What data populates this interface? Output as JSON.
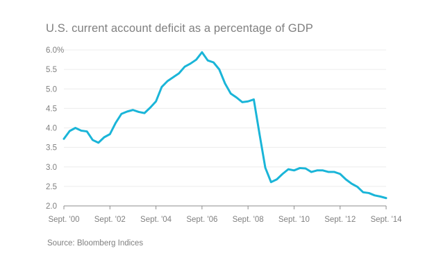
{
  "chart_data": {
    "type": "line",
    "title": "U.S. current account deficit as a percentage of GDP",
    "source": "Source: Bloomberg Indices",
    "xlabel": "",
    "ylabel": "",
    "x_tick_labels": [
      "Sept. '00",
      "Sept. '02",
      "Sept. '04",
      "Sept. '06",
      "Sept. '08",
      "Sept. '10",
      "Sept. '12",
      "Sept. '14"
    ],
    "y_tick_labels": [
      "2.0",
      "2.5",
      "3.0",
      "3.5",
      "4.0",
      "4.5",
      "5.0",
      "5.5",
      "6.0%"
    ],
    "ylim": [
      2.0,
      6.0
    ],
    "grid": "horizontal",
    "legend": "none",
    "line_color": "#1ab5d8",
    "series": [
      {
        "x": [
          "2000-09",
          "2000-12",
          "2001-03",
          "2001-06",
          "2001-09",
          "2001-12",
          "2002-03",
          "2002-06",
          "2002-09",
          "2002-12",
          "2003-03",
          "2003-06",
          "2003-09",
          "2003-12",
          "2004-03",
          "2004-06",
          "2004-09",
          "2004-12",
          "2005-03",
          "2005-06",
          "2005-09",
          "2005-12",
          "2006-03",
          "2006-06",
          "2006-09",
          "2006-12",
          "2007-03",
          "2007-06",
          "2007-09",
          "2007-12",
          "2008-03",
          "2008-06",
          "2008-09",
          "2008-12",
          "2009-03",
          "2009-06",
          "2009-09",
          "2009-12",
          "2010-03",
          "2010-06",
          "2010-09",
          "2010-12",
          "2011-03",
          "2011-06",
          "2011-09",
          "2011-12",
          "2012-03",
          "2012-06",
          "2012-09",
          "2012-12",
          "2013-03",
          "2013-06",
          "2013-09",
          "2013-12",
          "2014-03",
          "2014-06",
          "2014-09"
        ],
        "values": [
          3.72,
          3.92,
          4.0,
          3.93,
          3.91,
          3.69,
          3.62,
          3.76,
          3.84,
          4.13,
          4.36,
          4.42,
          4.46,
          4.41,
          4.38,
          4.52,
          4.68,
          5.05,
          5.2,
          5.3,
          5.4,
          5.57,
          5.65,
          5.75,
          5.94,
          5.73,
          5.68,
          5.5,
          5.14,
          4.88,
          4.78,
          4.66,
          4.68,
          4.73,
          3.84,
          2.98,
          2.61,
          2.68,
          2.82,
          2.94,
          2.91,
          2.97,
          2.96,
          2.87,
          2.91,
          2.91,
          2.87,
          2.87,
          2.82,
          2.68,
          2.57,
          2.49,
          2.35,
          2.33,
          2.27,
          2.24,
          2.2
        ]
      }
    ]
  }
}
